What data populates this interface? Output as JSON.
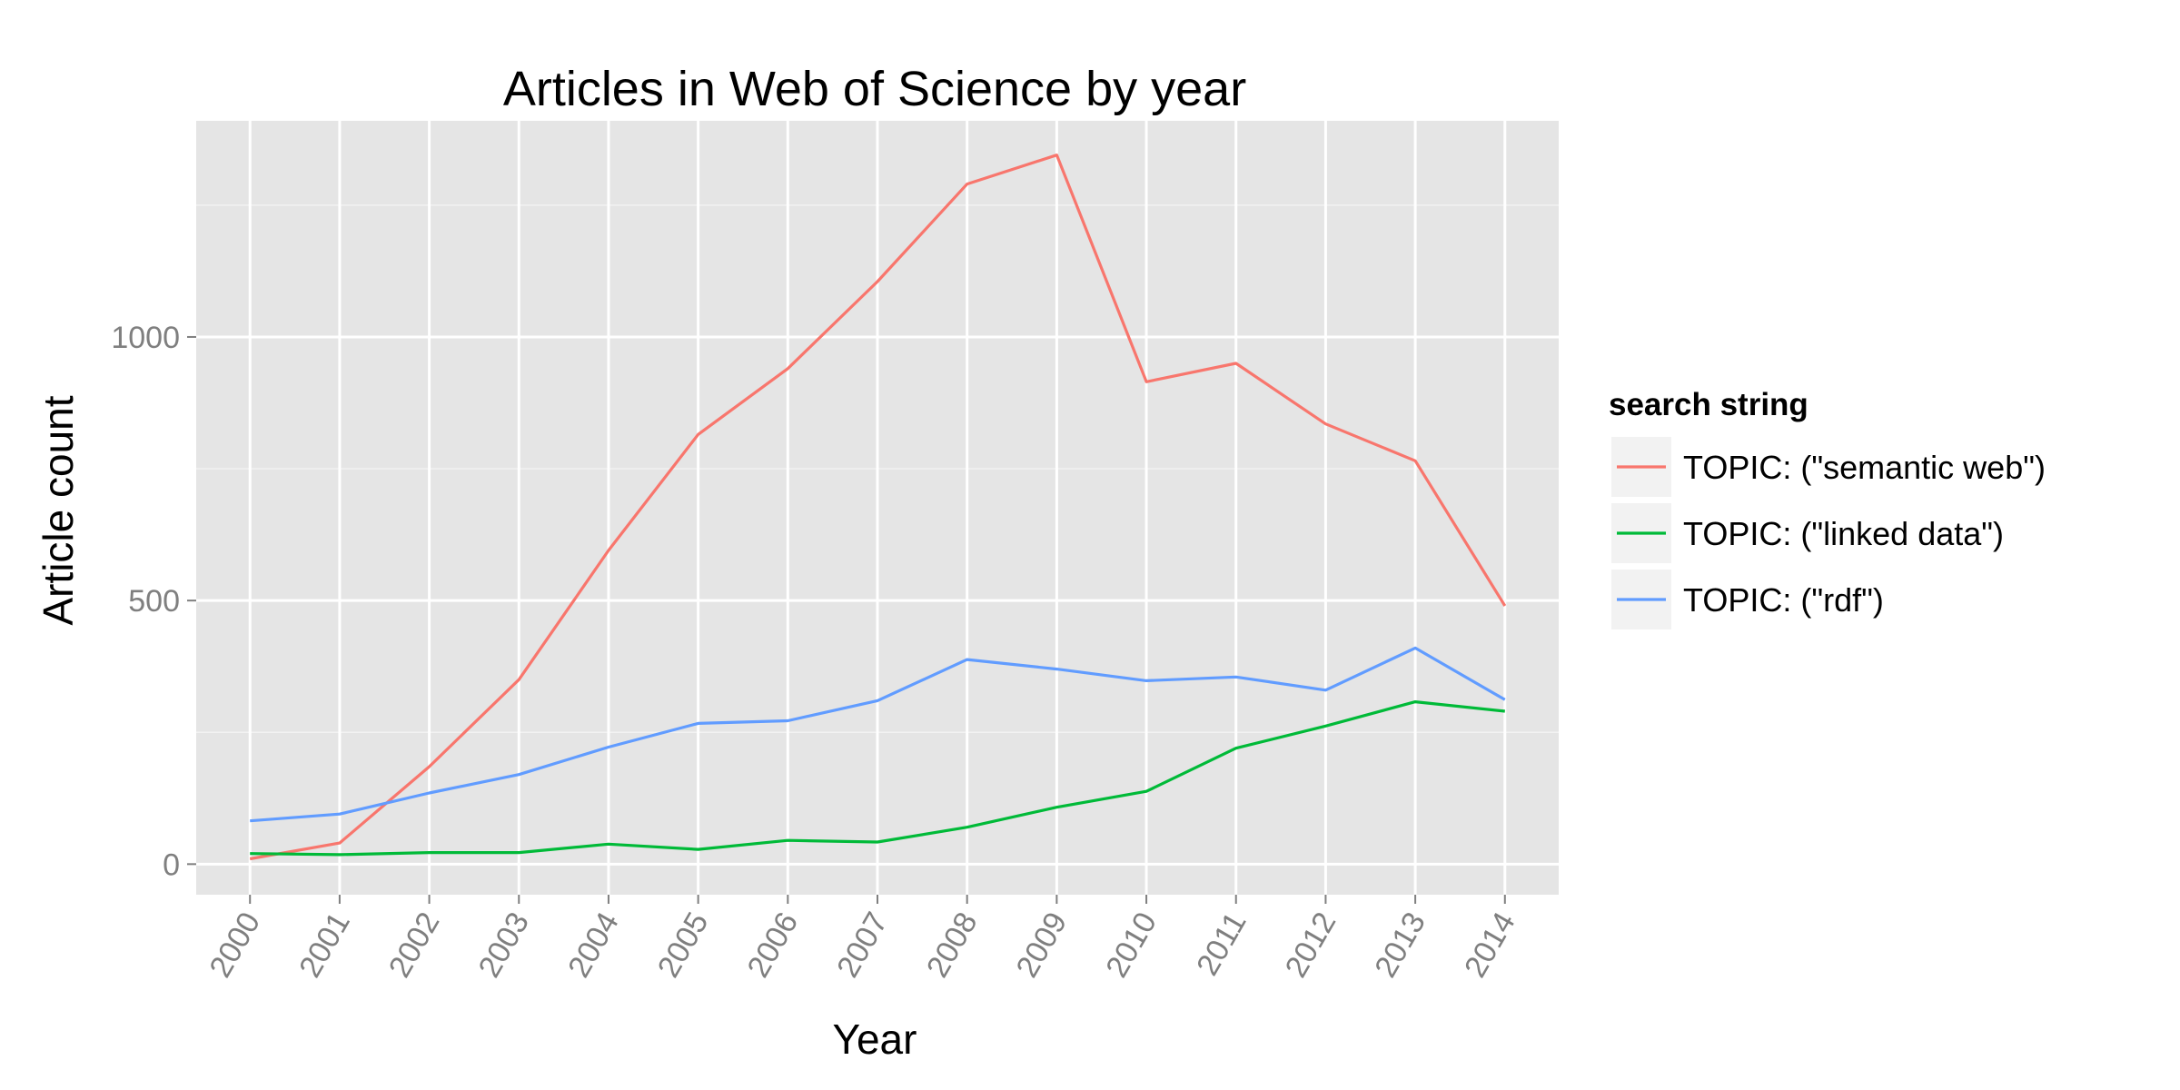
{
  "chart_data": {
    "type": "line",
    "title": "Articles in Web of Science by year",
    "xlabel": "Year",
    "ylabel": "Article count",
    "x": [
      "2000",
      "2001",
      "2002",
      "2003",
      "2004",
      "2005",
      "2006",
      "2007",
      "2008",
      "2009",
      "2010",
      "2011",
      "2012",
      "2013",
      "2014"
    ],
    "ylim": [
      -58,
      1410
    ],
    "yticks": [
      0,
      500,
      1000
    ],
    "y_tick_labels": [
      "0",
      "500",
      "1000"
    ],
    "grid": true,
    "legend": {
      "title": "search string",
      "position": "right"
    },
    "series": [
      {
        "name": "TOPIC: (\"semantic web\")",
        "color": "#F8766D",
        "values": [
          10,
          40,
          185,
          350,
          595,
          815,
          940,
          1105,
          1290,
          1345,
          915,
          950,
          835,
          765,
          490
        ]
      },
      {
        "name": "TOPIC: (\"linked data\")",
        "color": "#00BA38",
        "values": [
          20,
          18,
          22,
          22,
          38,
          28,
          45,
          42,
          70,
          108,
          138,
          220,
          262,
          308,
          290
        ]
      },
      {
        "name": "TOPIC: (\"rdf\")",
        "color": "#619CFF",
        "values": [
          82,
          95,
          135,
          170,
          222,
          267,
          272,
          310,
          388,
          370,
          348,
          355,
          330,
          410,
          312
        ]
      }
    ]
  }
}
